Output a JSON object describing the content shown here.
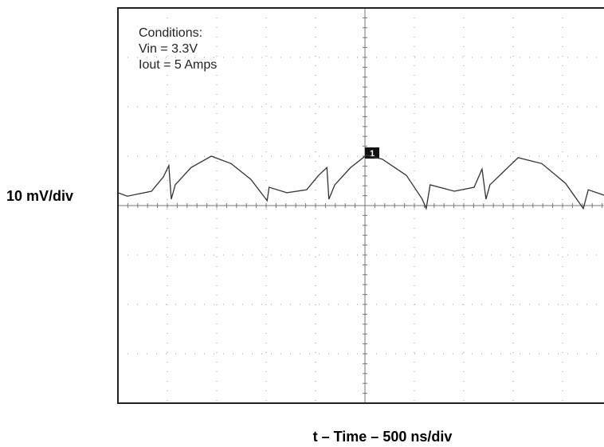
{
  "chart_data": {
    "type": "line",
    "annotations": [
      "Conditions:",
      "Vin = 3.3V",
      "Iout = 5 Amps"
    ],
    "ylabel": "10 mV/div",
    "xlabel": "t – Time – 500 ns/div",
    "channel_marker": "1",
    "xlim": [
      0,
      10
    ],
    "ylim": [
      0,
      8
    ],
    "grid": true,
    "color": "#333333",
    "x": [
      0,
      0.19,
      0.68,
      0.92,
      1.03,
      1.08,
      1.16,
      1.48,
      1.89,
      2.29,
      2.69,
      3.02,
      3.06,
      3.42,
      3.82,
      4.06,
      4.23,
      4.27,
      4.39,
      4.71,
      5.03,
      5.35,
      5.84,
      6.16,
      6.24,
      6.32,
      6.81,
      7.21,
      7.37,
      7.45,
      7.53,
      8.1,
      8.58,
      9.06,
      9.42,
      9.52,
      9.84
    ],
    "values": [
      4.26,
      4.19,
      4.29,
      4.58,
      4.81,
      4.13,
      4.42,
      4.77,
      5.0,
      4.85,
      4.53,
      4.1,
      4.37,
      4.26,
      4.32,
      4.61,
      4.77,
      4.13,
      4.42,
      4.77,
      5.02,
      4.94,
      4.61,
      4.13,
      3.94,
      4.42,
      4.29,
      4.37,
      4.74,
      4.13,
      4.42,
      4.97,
      4.85,
      4.45,
      3.94,
      4.32,
      4.21
    ]
  }
}
